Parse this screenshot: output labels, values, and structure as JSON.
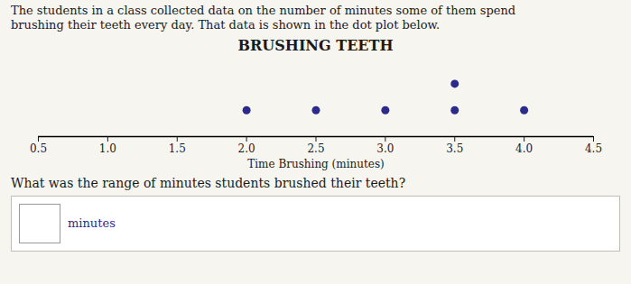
{
  "chart_data": {
    "type": "dot",
    "title": "BRUSHING TEETH",
    "subtitle": [
      "The students in a class collected data on the number of minutes some of them spend",
      "brushing their teeth every day. That data is shown in the dot plot below."
    ],
    "xlabel": "Time Brushing (minutes)",
    "x": [
      2.0,
      2.5,
      3.0,
      3.5,
      4.0
    ],
    "values": [
      1,
      1,
      1,
      2,
      1
    ],
    "color": "#2b2b8c",
    "xlim": [
      0.5,
      4.5
    ],
    "xticks": [
      0.5,
      1,
      1.5,
      2,
      2.5,
      3,
      3.5,
      4,
      4.5
    ],
    "tick_labels": "x",
    "grid": false,
    "annotations": [
      "What was the range of minutes students brushed their teeth?",
      "minutes"
    ]
  }
}
